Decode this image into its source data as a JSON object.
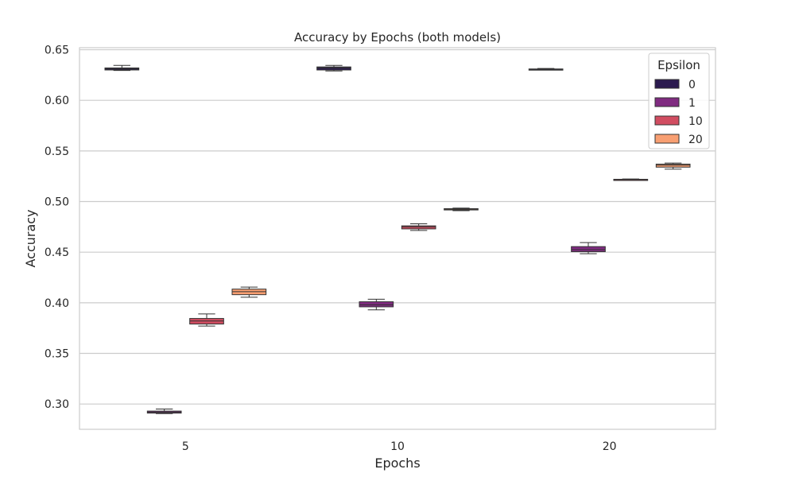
{
  "chart_data": {
    "type": "box",
    "title": "Accuracy by Epochs (both models)",
    "xlabel": "Epochs",
    "ylabel": "Accuracy",
    "categories": [
      "5",
      "10",
      "20"
    ],
    "ylim": [
      0.275,
      0.652
    ],
    "yticks": [
      "0.30",
      "0.35",
      "0.40",
      "0.45",
      "0.50",
      "0.55",
      "0.60",
      "0.65"
    ],
    "grid": "horizontal",
    "legend": {
      "title": "Epsilon",
      "placement": "top-right"
    },
    "series": [
      {
        "name": "0",
        "color": "#2b1a4f",
        "boxes": [
          {
            "min": 0.6295,
            "q1": 0.63,
            "median": 0.631,
            "q3": 0.632,
            "max": 0.6345
          },
          {
            "min": 0.629,
            "q1": 0.63,
            "median": 0.632,
            "q3": 0.633,
            "max": 0.6345
          },
          {
            "min": 0.63,
            "q1": 0.6302,
            "median": 0.6305,
            "q3": 0.631,
            "max": 0.6315
          }
        ]
      },
      {
        "name": "1",
        "color": "#802b81",
        "boxes": [
          {
            "min": 0.2905,
            "q1": 0.291,
            "median": 0.292,
            "q3": 0.293,
            "max": 0.295
          },
          {
            "min": 0.393,
            "q1": 0.396,
            "median": 0.398,
            "q3": 0.401,
            "max": 0.4035
          },
          {
            "min": 0.4485,
            "q1": 0.4505,
            "median": 0.4525,
            "q3": 0.4555,
            "max": 0.4595
          }
        ]
      },
      {
        "name": "10",
        "color": "#d14d61",
        "boxes": [
          {
            "min": 0.377,
            "q1": 0.379,
            "median": 0.382,
            "q3": 0.3845,
            "max": 0.389
          },
          {
            "min": 0.4715,
            "q1": 0.473,
            "median": 0.475,
            "q3": 0.476,
            "max": 0.478
          },
          {
            "min": 0.521,
            "q1": 0.5213,
            "median": 0.5217,
            "q3": 0.522,
            "max": 0.5223
          }
        ]
      },
      {
        "name": "20",
        "color": "#f89f72",
        "boxes": [
          {
            "min": 0.4055,
            "q1": 0.408,
            "median": 0.411,
            "q3": 0.4135,
            "max": 0.4155
          },
          {
            "min": 0.491,
            "q1": 0.4917,
            "median": 0.4925,
            "q3": 0.493,
            "max": 0.4935
          },
          {
            "min": 0.532,
            "q1": 0.534,
            "median": 0.536,
            "q3": 0.537,
            "max": 0.538
          }
        ]
      }
    ]
  }
}
